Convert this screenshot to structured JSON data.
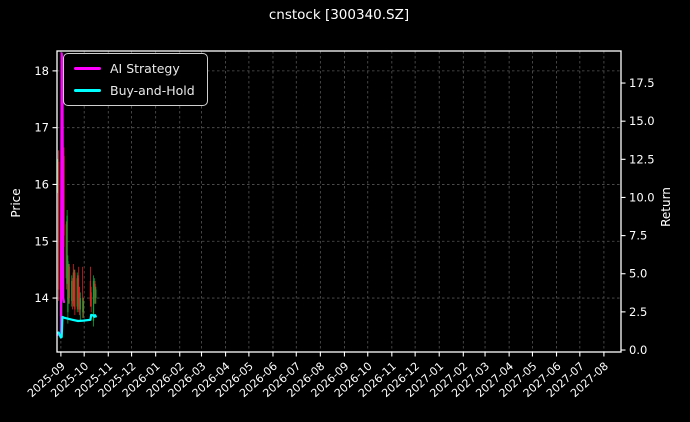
{
  "title": "cnstock [300340.SZ]",
  "legend": {
    "items": [
      {
        "label": "AI Strategy",
        "color": "#ff00ff"
      },
      {
        "label": "Buy-and-Hold",
        "color": "#00ffff"
      }
    ]
  },
  "chart_data": {
    "type": "candlestick+line",
    "title": "cnstock [300340.SZ]",
    "grid": true,
    "legend_position": "upper left",
    "x_domain": [
      "2025-08-27",
      "2027-08-23"
    ],
    "x_ticks": [
      "2025-09",
      "2025-10",
      "2025-11",
      "2025-12",
      "2026-01",
      "2026-02",
      "2026-03",
      "2026-04",
      "2026-05",
      "2026-06",
      "2026-07",
      "2026-08",
      "2026-09",
      "2026-10",
      "2026-11",
      "2026-12",
      "2027-01",
      "2027-02",
      "2027-03",
      "2027-04",
      "2027-05",
      "2027-06",
      "2027-07",
      "2027-08"
    ],
    "left_axis": {
      "label": "Price",
      "ticks": [
        18,
        17,
        16,
        15,
        14
      ],
      "range": [
        13.05,
        18.35
      ]
    },
    "right_axis": {
      "label": "Return",
      "ticks": [
        "17.5",
        "15.0",
        "12.5",
        "10.0",
        "7.5",
        "5.0",
        "2.5",
        "0.0"
      ],
      "range": [
        -0.13,
        19.6
      ]
    },
    "candles": [
      [
        "2025-08-28",
        15.95,
        16.45,
        15.85,
        16.35
      ],
      [
        "2025-08-29",
        16.4,
        16.6,
        13.95,
        14.15
      ],
      [
        "2025-09-01",
        14.2,
        14.6,
        13.5,
        13.7
      ],
      [
        "2025-09-02",
        13.7,
        18.15,
        13.55,
        17.9
      ],
      [
        "2025-09-03",
        17.9,
        18.0,
        14.8,
        15.0
      ],
      [
        "2025-09-04",
        15.0,
        15.2,
        14.3,
        14.4
      ],
      [
        "2025-09-05",
        16.5,
        16.65,
        14.9,
        15.1
      ],
      [
        "2025-09-08",
        15.3,
        15.35,
        14.15,
        14.35
      ],
      [
        "2025-09-09",
        14.35,
        15.55,
        14.25,
        15.45
      ],
      [
        "2025-09-10",
        13.75,
        14.75,
        13.55,
        14.65
      ],
      [
        "2025-09-11",
        14.0,
        14.6,
        13.9,
        14.55
      ],
      [
        "2025-09-12",
        14.55,
        14.6,
        13.9,
        14.0
      ],
      [
        "2025-09-15",
        13.95,
        14.4,
        13.85,
        14.3
      ],
      [
        "2025-09-16",
        14.3,
        14.35,
        13.8,
        13.9
      ],
      [
        "2025-09-17",
        14.45,
        14.6,
        13.85,
        13.95
      ],
      [
        "2025-09-18",
        13.95,
        14.5,
        13.85,
        14.45
      ],
      [
        "2025-09-19",
        14.45,
        14.5,
        13.7,
        13.8
      ],
      [
        "2025-09-22",
        13.85,
        14.45,
        13.75,
        14.35
      ],
      [
        "2025-09-23",
        14.35,
        14.4,
        13.8,
        13.9
      ],
      [
        "2025-09-24",
        14.2,
        14.55,
        13.75,
        13.85
      ],
      [
        "2025-09-25",
        14.1,
        14.2,
        13.7,
        13.8
      ],
      [
        "2025-09-26",
        13.8,
        14.1,
        13.6,
        14.0
      ],
      [
        "2025-09-29",
        14.0,
        14.55,
        13.65,
        13.75
      ],
      [
        "2025-09-30",
        13.75,
        14.0,
        13.65,
        13.95
      ],
      [
        "2025-10-09",
        14.3,
        14.55,
        13.85,
        13.95
      ],
      [
        "2025-10-10",
        14.1,
        14.2,
        13.75,
        13.85
      ],
      [
        "2025-10-13",
        13.6,
        14.4,
        13.5,
        14.3
      ],
      [
        "2025-10-14",
        14.0,
        14.35,
        13.9,
        14.25
      ],
      [
        "2025-10-15",
        14.25,
        14.3,
        13.9,
        14.0
      ],
      [
        "2025-10-16",
        14.0,
        14.2,
        13.9,
        14.15
      ]
    ],
    "series": [
      {
        "name": "AI Strategy",
        "axis": "right",
        "color": "#ff00ff",
        "points": [
          [
            "2025-08-28",
            1.0
          ],
          [
            "2025-08-29",
            1.02
          ],
          [
            "2025-09-01",
            1.05
          ],
          [
            "2025-09-02",
            19.45
          ],
          [
            "2025-09-03",
            18.9
          ],
          [
            "2025-09-04",
            3.4
          ],
          [
            "2025-09-05",
            3.15
          ]
        ]
      },
      {
        "name": "Buy-and-Hold",
        "axis": "right",
        "color": "#00ffff",
        "points": [
          [
            "2025-08-28",
            1.12
          ],
          [
            "2025-08-29",
            1.15
          ],
          [
            "2025-09-01",
            0.82
          ],
          [
            "2025-09-02",
            0.85
          ],
          [
            "2025-09-03",
            2.18
          ],
          [
            "2025-09-05",
            2.12
          ],
          [
            "2025-09-10",
            2.05
          ],
          [
            "2025-09-16",
            1.98
          ],
          [
            "2025-09-23",
            1.9
          ],
          [
            "2025-09-30",
            1.93
          ],
          [
            "2025-10-09",
            1.98
          ],
          [
            "2025-10-10",
            2.3
          ],
          [
            "2025-10-13",
            2.26
          ],
          [
            "2025-10-14",
            2.18
          ],
          [
            "2025-10-15",
            2.28
          ],
          [
            "2025-10-16",
            2.2
          ]
        ]
      }
    ],
    "colors": {
      "up": "#00aa33",
      "down": "#dd2222",
      "grid": "#555555",
      "axis": "#ffffff",
      "background": "#000000",
      "text": "#ffffff"
    }
  }
}
